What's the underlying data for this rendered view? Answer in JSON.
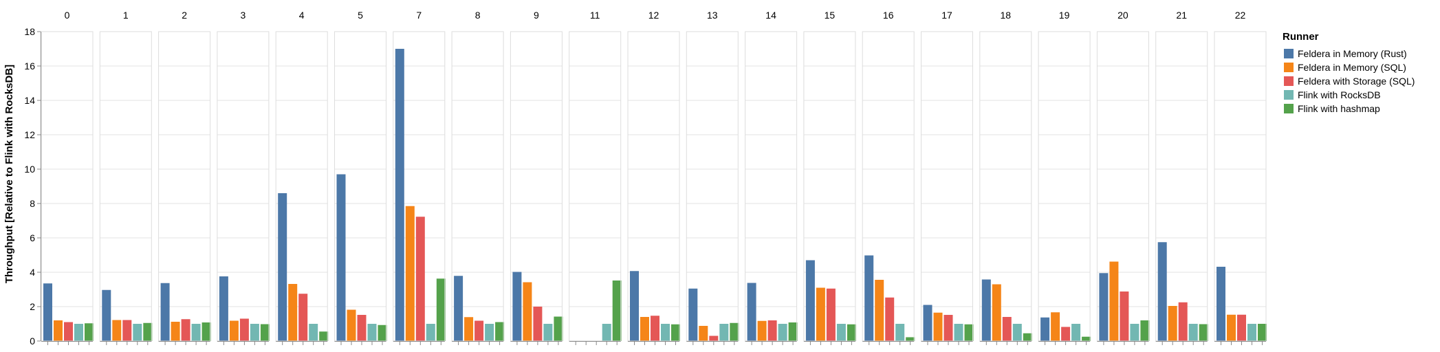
{
  "chart_data": {
    "type": "bar",
    "facet_labels": [
      "0",
      "1",
      "2",
      "3",
      "4",
      "5",
      "7",
      "8",
      "9",
      "11",
      "12",
      "13",
      "14",
      "15",
      "16",
      "17",
      "18",
      "19",
      "20",
      "21",
      "22"
    ],
    "series": [
      {
        "name": "Feldera in Memory (Rust)",
        "color": "#4c78a8",
        "values": [
          3.35,
          2.97,
          3.37,
          3.76,
          8.6,
          9.7,
          17.0,
          3.79,
          4.02,
          0.0,
          4.07,
          3.05,
          3.38,
          4.7,
          4.98,
          2.1,
          3.58,
          1.37,
          3.95,
          5.75,
          4.32
        ]
      },
      {
        "name": "Feldera in Memory (SQL)",
        "color": "#f58518",
        "values": [
          1.2,
          1.22,
          1.12,
          1.18,
          3.32,
          1.82,
          7.85,
          1.39,
          3.42,
          0.0,
          1.4,
          0.88,
          1.17,
          3.1,
          3.56,
          1.65,
          3.3,
          1.67,
          4.62,
          2.04,
          1.53
        ]
      },
      {
        "name": "Feldera with Storage (SQL)",
        "color": "#e45756",
        "values": [
          1.1,
          1.22,
          1.27,
          1.3,
          2.75,
          1.52,
          7.23,
          1.18,
          2.0,
          0.0,
          1.47,
          0.3,
          1.2,
          3.05,
          2.53,
          1.52,
          1.4,
          0.82,
          2.88,
          2.25,
          1.53
        ]
      },
      {
        "name": "Flink with RocksDB",
        "color": "#72b7b2",
        "values": [
          1,
          1,
          1,
          1,
          1,
          1,
          1,
          1,
          1,
          1,
          1,
          1,
          1,
          1,
          1,
          1,
          1,
          1,
          1,
          1,
          1
        ]
      },
      {
        "name": "Flink with hashmap",
        "color": "#54a24b",
        "values": [
          1.03,
          1.05,
          1.08,
          0.98,
          0.55,
          0.93,
          3.63,
          1.1,
          1.42,
          3.52,
          0.97,
          1.05,
          1.08,
          0.97,
          0.22,
          0.97,
          0.45,
          0.25,
          1.2,
          0.98,
          1.0
        ]
      }
    ],
    "ylabel": "Throughput [Relative to Flink with RocksDB]",
    "xlabel": "",
    "ylim": [
      0,
      18
    ],
    "y_ticks": [
      "0",
      "2",
      "4",
      "6",
      "8",
      "10",
      "12",
      "14",
      "16",
      "18"
    ],
    "grid": true,
    "legend": {
      "title": "Runner",
      "position": "right"
    }
  }
}
